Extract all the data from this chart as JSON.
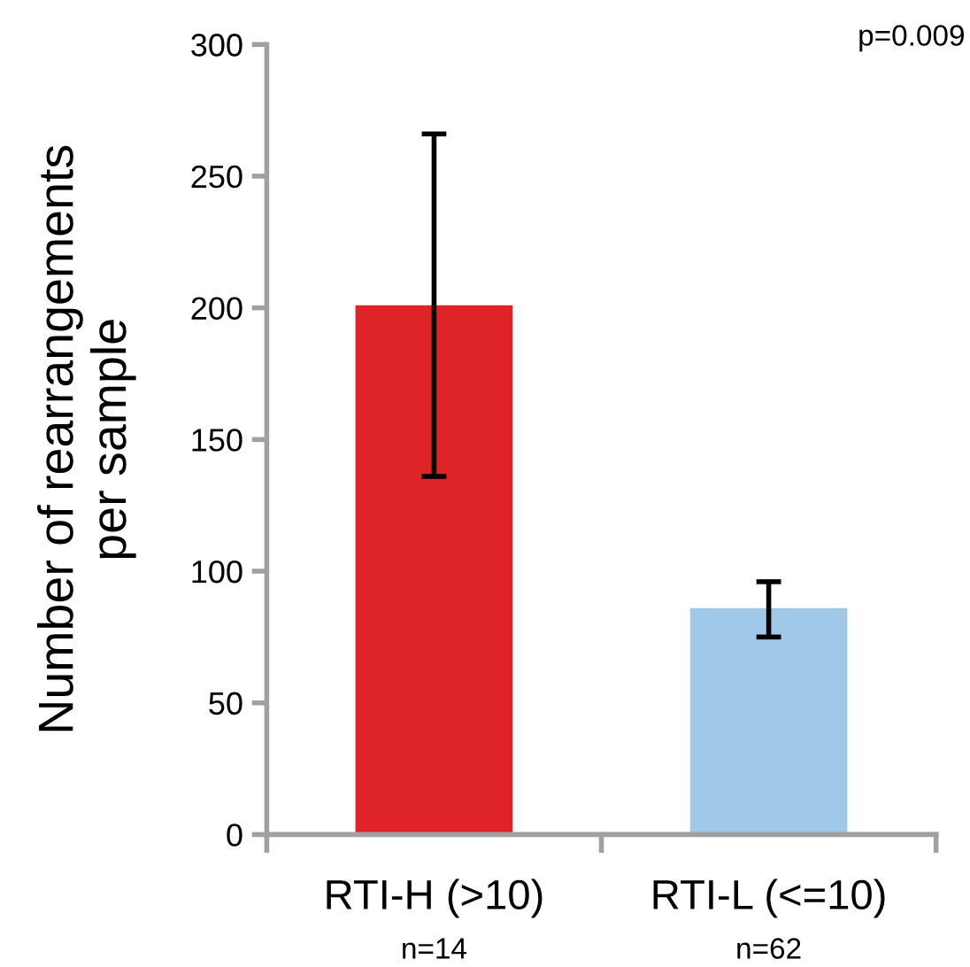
{
  "chart_data": {
    "type": "bar",
    "ylabel": "Number of rearrangements\nper sample",
    "categories": [
      "RTI-H (>10)",
      "RTI-L (<=10)"
    ],
    "values": [
      201,
      86
    ],
    "colors": [
      "#de2427",
      "#9fc8e9"
    ],
    "errors": [
      [
        136,
        266
      ],
      [
        75,
        96
      ]
    ],
    "ylim": [
      0,
      300
    ],
    "yticks": [
      0,
      50,
      100,
      150,
      200,
      250,
      300
    ],
    "annotations": [
      "p=0.009",
      "n=14",
      "n=62"
    ]
  }
}
